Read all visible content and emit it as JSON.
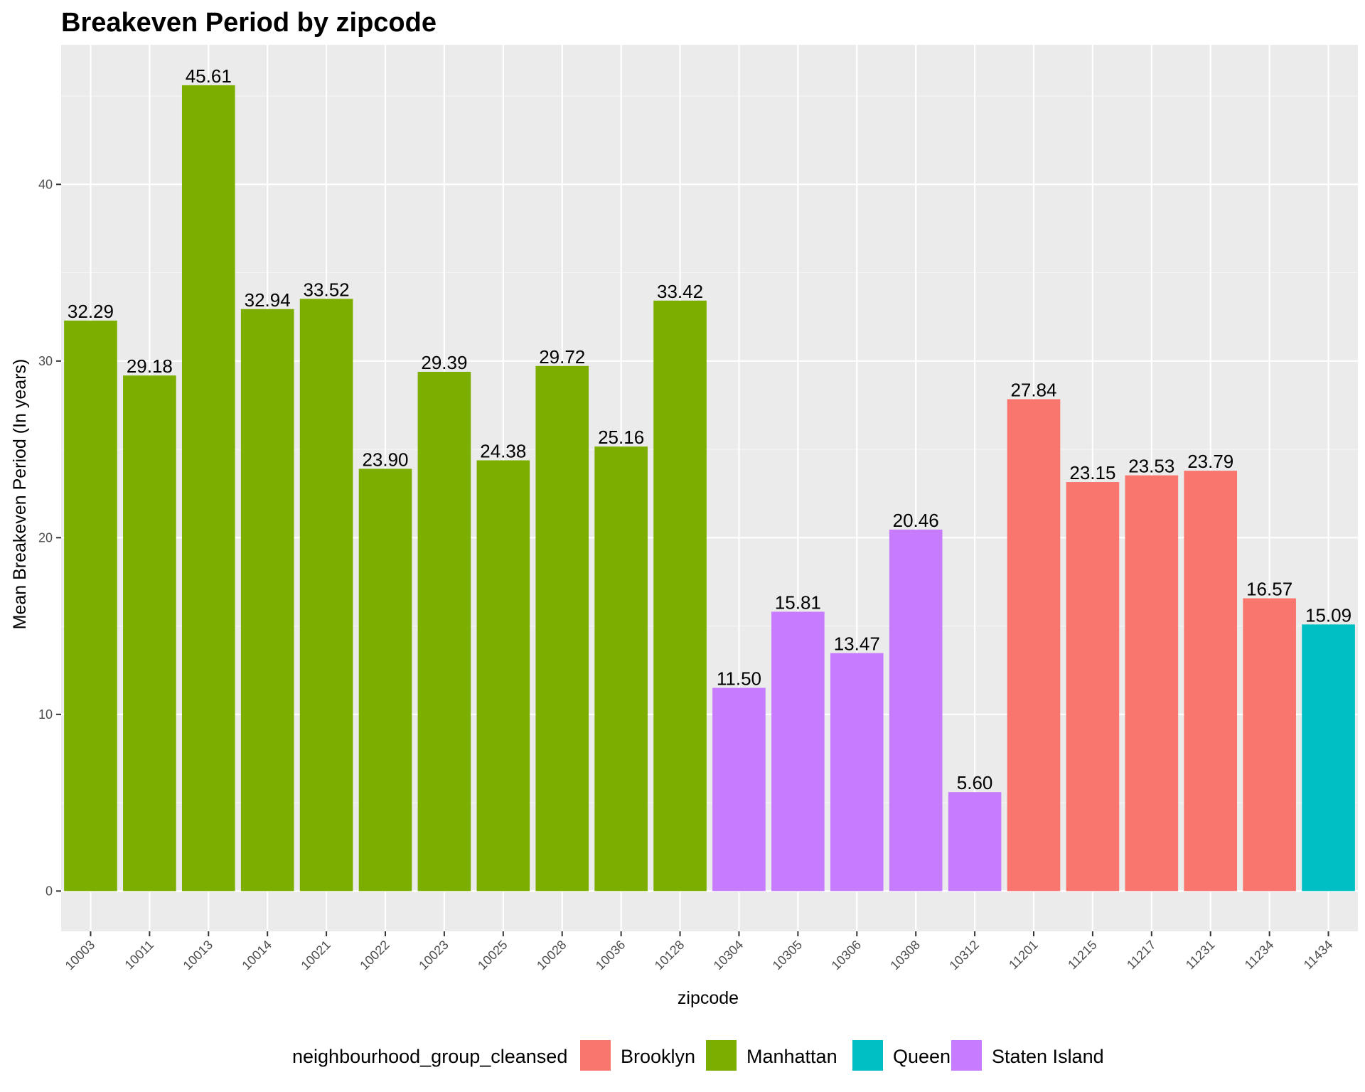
{
  "chart_data": {
    "type": "bar",
    "title": "Breakeven Period by zipcode",
    "xlabel": "zipcode",
    "ylabel": "Mean Breakeven Period (In years)",
    "ylim": [
      -2.28,
      47.9
    ],
    "yticks": [
      0,
      10,
      20,
      30,
      40
    ],
    "grid": true,
    "legend_position": "bottom",
    "legend_title": "neighbourhood_group_cleansed",
    "groups": [
      {
        "name": "Brooklyn",
        "color": "#F8766D"
      },
      {
        "name": "Manhattan",
        "color": "#7CAE00"
      },
      {
        "name": "Queens",
        "color": "#00BFC4"
      },
      {
        "name": "Staten Island",
        "color": "#C77CFF"
      }
    ],
    "categories": [
      "10003",
      "10011",
      "10013",
      "10014",
      "10021",
      "10022",
      "10023",
      "10025",
      "10028",
      "10036",
      "10128",
      "10304",
      "10305",
      "10306",
      "10308",
      "10312",
      "11201",
      "11215",
      "11217",
      "11231",
      "11234",
      "11434"
    ],
    "values": [
      32.29,
      29.18,
      45.61,
      32.94,
      33.52,
      23.9,
      29.39,
      24.38,
      29.72,
      25.16,
      33.42,
      11.5,
      15.81,
      13.47,
      20.46,
      5.6,
      27.84,
      23.15,
      23.53,
      23.79,
      16.57,
      15.09
    ],
    "value_labels": [
      "32.29",
      "29.18",
      "45.61",
      "32.94",
      "33.52",
      "23.90",
      "29.39",
      "24.38",
      "29.72",
      "25.16",
      "33.42",
      "11.50",
      "15.81",
      "13.47",
      "20.46",
      "5.60",
      "27.84",
      "23.15",
      "23.53",
      "23.79",
      "16.57",
      "15.09"
    ],
    "bar_groups": [
      "Manhattan",
      "Manhattan",
      "Manhattan",
      "Manhattan",
      "Manhattan",
      "Manhattan",
      "Manhattan",
      "Manhattan",
      "Manhattan",
      "Manhattan",
      "Manhattan",
      "Staten Island",
      "Staten Island",
      "Staten Island",
      "Staten Island",
      "Staten Island",
      "Brooklyn",
      "Brooklyn",
      "Brooklyn",
      "Brooklyn",
      "Brooklyn",
      "Queens"
    ]
  }
}
